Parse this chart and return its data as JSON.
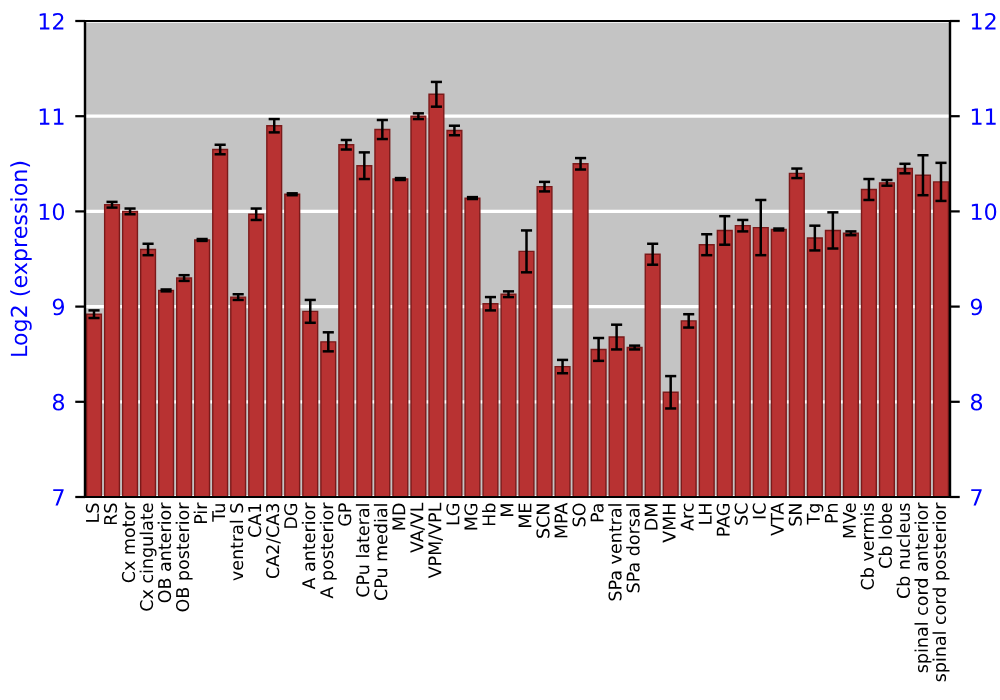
{
  "chart_data": {
    "type": "bar",
    "ylabel": "Log2 (expression)",
    "categories": [
      "LS",
      "RS",
      "Cx motor",
      "Cx cingulate",
      "OB anterior",
      "OB posterior",
      "Pir",
      "Tu",
      "ventral S",
      "CA1",
      "CA2/CA3",
      "DG",
      "A anterior",
      "A posterior",
      "GP",
      "CPu lateral",
      "CPu medial",
      "MD",
      "VA/VL",
      "VPM/VPL",
      "LG",
      "MG",
      "Hb",
      "M",
      "ME",
      "SCN",
      "MPA",
      "SO",
      "Pa",
      "SPa ventral",
      "SPa dorsal",
      "DM",
      "VMH",
      "Arc",
      "LH",
      "PAG",
      "SC",
      "IC",
      "VTA",
      "SN",
      "Tg",
      "Pn",
      "MVe",
      "Cb vermis",
      "Cb lobe",
      "Cb nucleus",
      "spinal cord anterior",
      "spinal cord posterior"
    ],
    "series": [
      {
        "color": "#b83232",
        "values": [
          8.92,
          10.07,
          10.0,
          9.6,
          9.17,
          9.3,
          9.7,
          10.65,
          9.1,
          9.97,
          10.9,
          10.18,
          8.95,
          8.63,
          10.7,
          10.48,
          10.86,
          10.34,
          11.0,
          11.23,
          10.85,
          10.14,
          9.03,
          9.13,
          9.58,
          10.26,
          8.37,
          10.5,
          8.55,
          8.68,
          8.57,
          9.55,
          8.1,
          8.85,
          9.65,
          9.8,
          9.85,
          9.83,
          9.81,
          10.4,
          9.72,
          9.8,
          9.77,
          10.23,
          10.3,
          10.45,
          10.38,
          10.31
        ],
        "errors": [
          0.04,
          0.03,
          0.03,
          0.06,
          0.01,
          0.03,
          0.01,
          0.05,
          0.03,
          0.06,
          0.07,
          0.01,
          0.12,
          0.1,
          0.05,
          0.14,
          0.1,
          0.01,
          0.03,
          0.13,
          0.05,
          0.01,
          0.07,
          0.03,
          0.22,
          0.05,
          0.07,
          0.06,
          0.12,
          0.13,
          0.02,
          0.11,
          0.17,
          0.07,
          0.11,
          0.15,
          0.06,
          0.29,
          0.01,
          0.05,
          0.13,
          0.19,
          0.02,
          0.11,
          0.03,
          0.05,
          0.21,
          0.2
        ]
      }
    ],
    "ylim": [
      7,
      12
    ],
    "yticks": [
      7,
      8,
      9,
      10,
      11,
      12
    ],
    "y2lim": [
      7,
      12
    ],
    "y2ticks": [
      7,
      8,
      9,
      10,
      11,
      12
    ],
    "grid": "y",
    "legend": false
  }
}
